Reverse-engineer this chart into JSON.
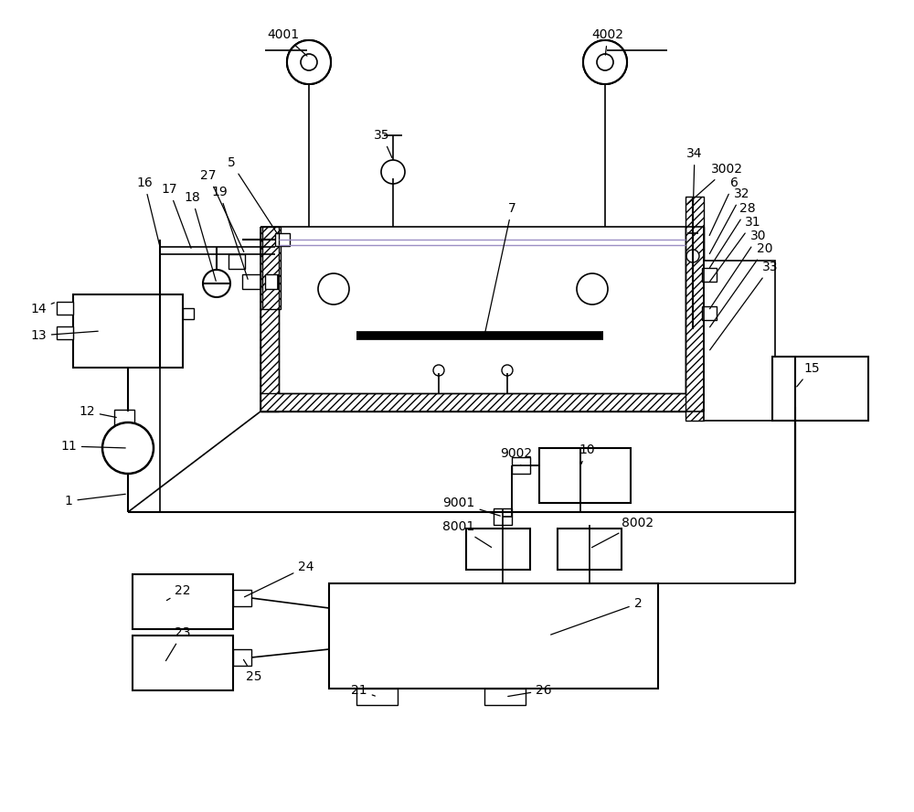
{
  "bg_color": "#ffffff",
  "line_color": "#000000",
  "purple_line": "#9B8EC4"
}
